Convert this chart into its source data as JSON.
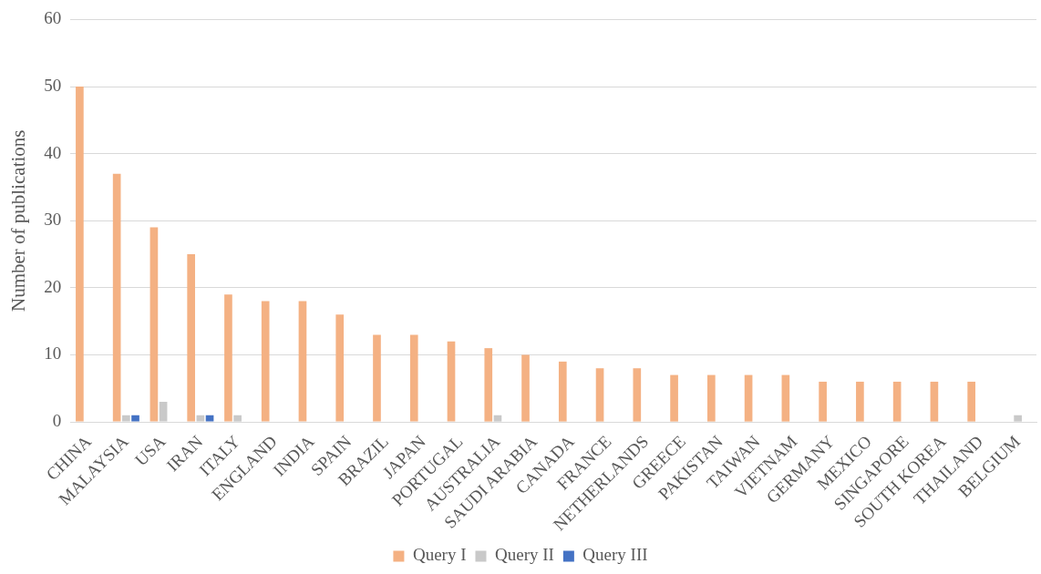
{
  "chart_data": {
    "type": "bar",
    "ylabel": "Number of publications",
    "categories": [
      "CHINA",
      "MALAYSIA",
      "USA",
      "IRAN",
      "ITALY",
      "ENGLAND",
      "INDIA",
      "SPAIN",
      "BRAZIL",
      "JAPAN",
      "PORTUGAL",
      "AUSTRALIA",
      "SAUDI ARABIA",
      "CANADA",
      "FRANCE",
      "NETHERLANDS",
      "GREECE",
      "PAKISTAN",
      "TAIWAN",
      "VIETNAM",
      "GERMANY",
      "MEXICO",
      "SINGAPORE",
      "SOUTH KOREA",
      "THAILAND",
      "BELGIUM"
    ],
    "series": [
      {
        "name": "Query I",
        "color": "#f4b183",
        "values": [
          50,
          37,
          29,
          25,
          19,
          18,
          18,
          16,
          13,
          13,
          12,
          11,
          10,
          9,
          8,
          8,
          7,
          7,
          7,
          7,
          6,
          6,
          6,
          6,
          6,
          0
        ]
      },
      {
        "name": "Query II",
        "color": "#c9c9c9",
        "values": [
          0,
          1,
          3,
          1,
          1,
          0,
          0,
          0,
          0,
          0,
          0,
          1,
          0,
          0,
          0,
          0,
          0,
          0,
          0,
          0,
          0,
          0,
          0,
          0,
          0,
          1
        ]
      },
      {
        "name": "Query III",
        "color": "#4472c4",
        "values": [
          0,
          1,
          0,
          1,
          0,
          0,
          0,
          0,
          0,
          0,
          0,
          0,
          0,
          0,
          0,
          0,
          0,
          0,
          0,
          0,
          0,
          0,
          0,
          0,
          0,
          0
        ]
      }
    ],
    "ylim": [
      0,
      60
    ],
    "yticks": [
      0,
      10,
      20,
      30,
      40,
      50,
      60
    ],
    "grid": "y",
    "legend": "bottom"
  }
}
